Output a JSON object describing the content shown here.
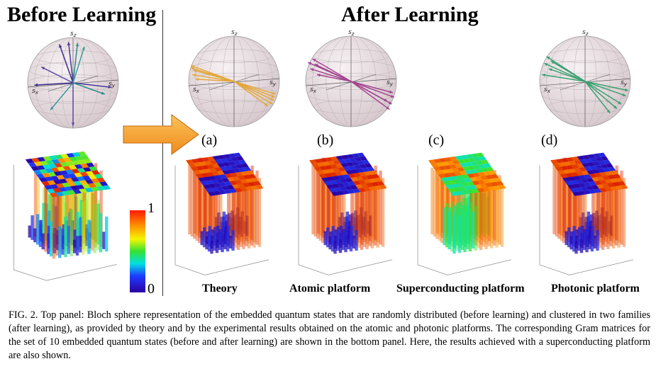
{
  "titles": {
    "before": "Before Learning",
    "after": "After Learning"
  },
  "panels": [
    {
      "letter": "(a)",
      "label": "Theory",
      "color": "#e8a13a"
    },
    {
      "letter": "(b)",
      "label": "Atomic platform",
      "color": "#a0408a"
    },
    {
      "letter": "(c)",
      "label": "Superconducting platform",
      "color": "#5aa05a"
    },
    {
      "letter": "(d)",
      "label": "Photonic platform",
      "color": "#3aa070"
    }
  ],
  "bloch_axes": {
    "sz": "s",
    "sz_sub": "z",
    "sx": "s",
    "sx_sub": "x",
    "sy": "s",
    "sy_sub": "y"
  },
  "colorbar": {
    "max": "1",
    "min": "0"
  },
  "caption": "FIG. 2. Top panel: Bloch sphere representation of the embedded quantum states that are randomly distributed (before learning) and clustered in two families (after learning), as provided by theory and by the experimental results obtained on the atomic and photonic platforms. The corresponding Gram matrices for the set of 10 embedded quantum states (before and after learning) are shown in the bottom panel. Here, the results achieved with a superconducting platform are also shown.",
  "colors": {
    "sphere": "#e9dfe2",
    "arrow": "#f6a12a",
    "bar": "#8b1a1a"
  }
}
